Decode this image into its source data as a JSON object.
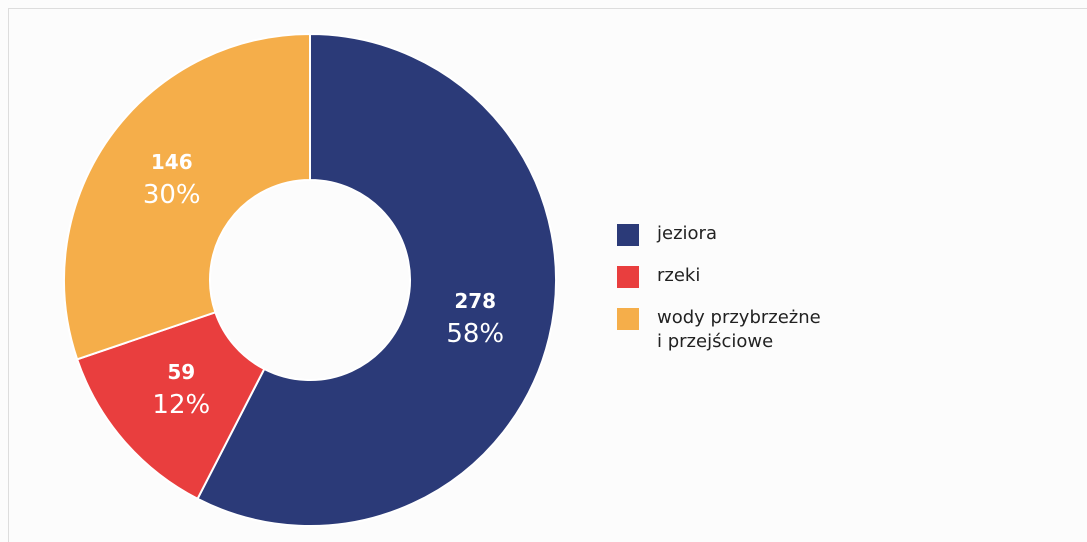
{
  "chart_data": {
    "type": "donut",
    "categories": [
      "jeziora",
      "rzeki",
      "wody przybrzeżne\ni przejściowe"
    ],
    "values": [
      278,
      59,
      146
    ],
    "percent_labels": [
      "58%",
      "12%",
      "30%"
    ],
    "colors": [
      "#2b3a78",
      "#e93e3e",
      "#f5ae4a"
    ],
    "legend": "right"
  }
}
